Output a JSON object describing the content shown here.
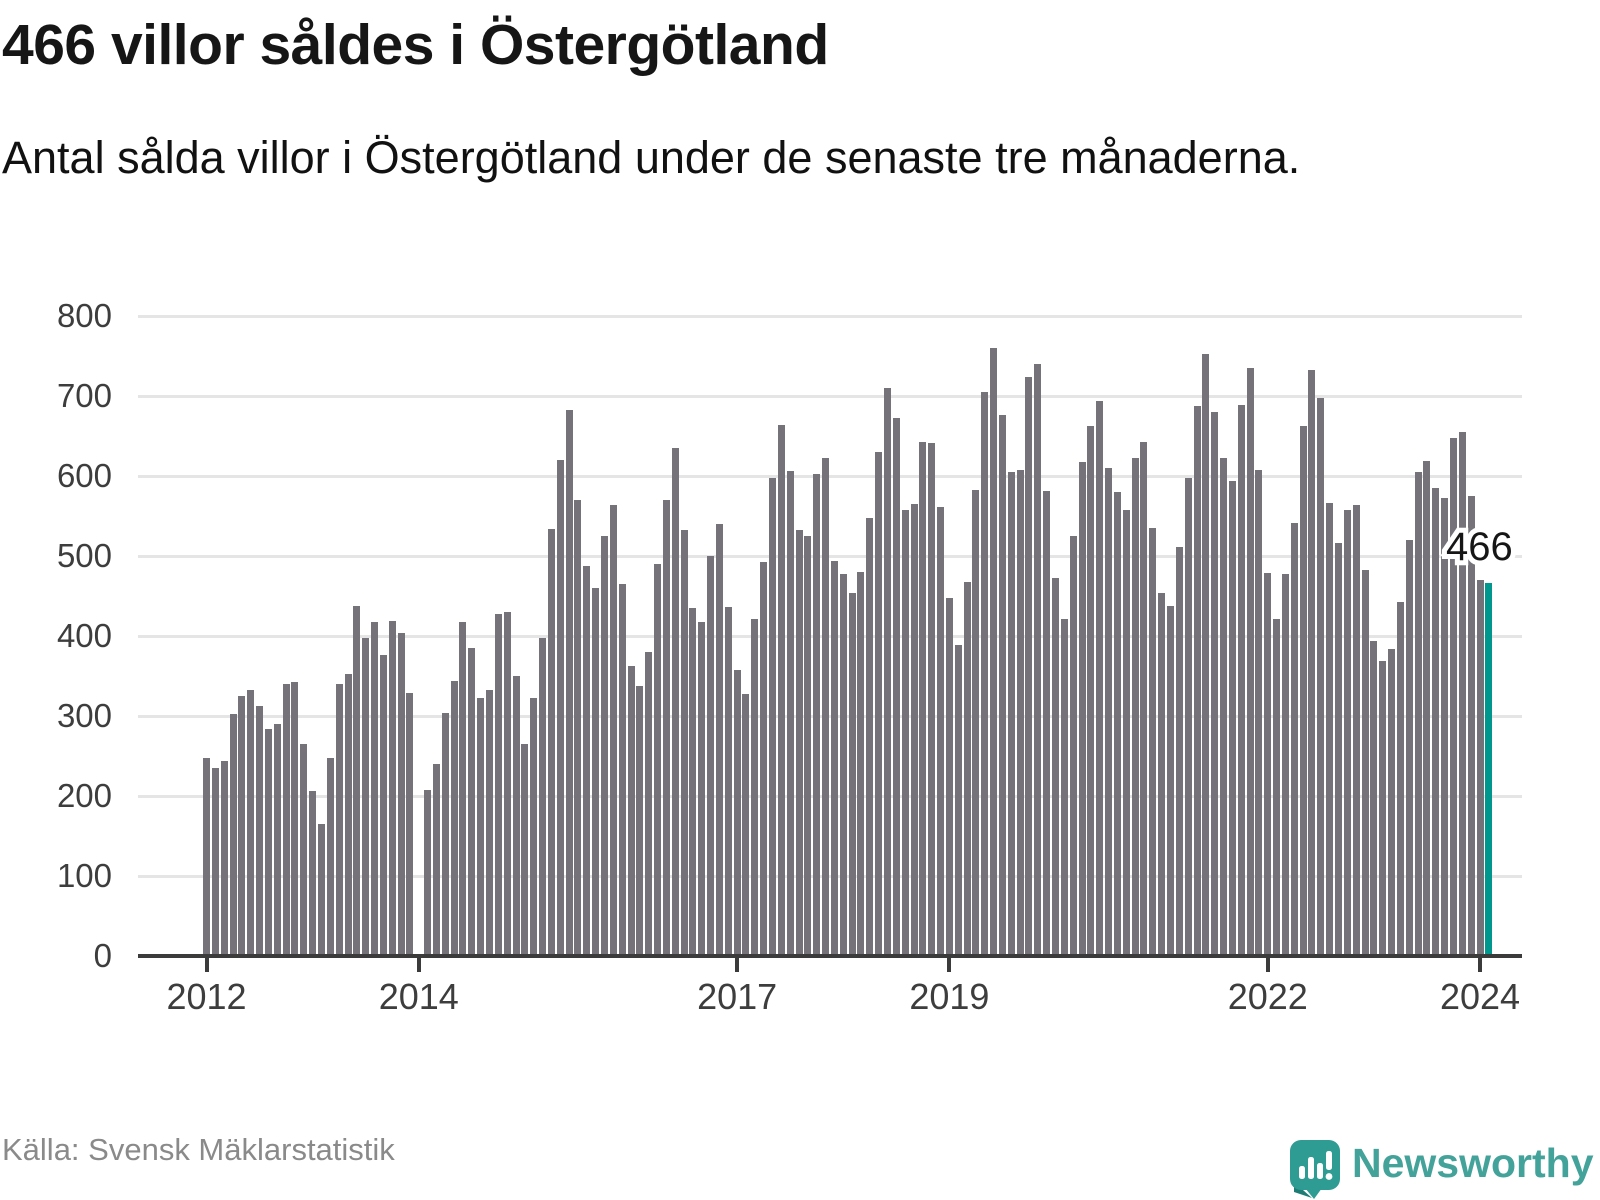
{
  "header": {
    "title": "466 villor såldes i Östergötland",
    "subtitle": "Antal sålda villor i Östergötland under de senaste tre månaderna."
  },
  "footer": {
    "source": "Källa: Svensk Mäklarstatistik",
    "logo_text": "Newsworthy"
  },
  "colors": {
    "bar": "#757379",
    "highlight": "#00988e",
    "axis": "#3b3b3b",
    "grid": "#e5e5e5",
    "tick_label": "#3d3d3d",
    "logo_teal": "#2e9c93"
  },
  "chart_data": {
    "type": "bar",
    "title": "466 villor såldes i Östergötland",
    "subtitle": "Antal sålda villor i Östergötland under de senaste tre månaderna.",
    "xlabel": "",
    "ylabel": "",
    "ylim": [
      0,
      800
    ],
    "ytick_step": 100,
    "ytick_labels": [
      "0",
      "100",
      "200",
      "300",
      "400",
      "500",
      "600",
      "700",
      "800"
    ],
    "grid": true,
    "legend": "none",
    "start_month": "2012-01",
    "end_month": "2024-02",
    "frequency": "monthly",
    "missing_month": "2014-01",
    "x_ticks": [
      {
        "label": "2012",
        "month_index": 0
      },
      {
        "label": "2014",
        "month_index": 24
      },
      {
        "label": "2017",
        "month_index": 60
      },
      {
        "label": "2019",
        "month_index": 84
      },
      {
        "label": "2022",
        "month_index": 120
      },
      {
        "label": "2024",
        "month_index": 144
      }
    ],
    "values": [
      248,
      235,
      244,
      302,
      325,
      333,
      313,
      284,
      290,
      340,
      342,
      265,
      206,
      165,
      248,
      340,
      352,
      437,
      397,
      417,
      376,
      419,
      404,
      329,
      null,
      208,
      240,
      304,
      344,
      417,
      385,
      322,
      332,
      428,
      430,
      350,
      265,
      322,
      398,
      534,
      620,
      683,
      570,
      488,
      460,
      525,
      564,
      465,
      363,
      338,
      380,
      490,
      570,
      635,
      533,
      435,
      417,
      500,
      540,
      436,
      358,
      327,
      421,
      492,
      598,
      664,
      606,
      533,
      525,
      603,
      622,
      494,
      478,
      454,
      480,
      548,
      630,
      710,
      672,
      558,
      565,
      642,
      641,
      561,
      447,
      389,
      468,
      583,
      705,
      760,
      676,
      605,
      608,
      724,
      740,
      581,
      472,
      421,
      525,
      617,
      663,
      694,
      610,
      580,
      557,
      623,
      643,
      535,
      454,
      437,
      511,
      597,
      687,
      753,
      680,
      623,
      594,
      689,
      735,
      608,
      479,
      421,
      477,
      541,
      663,
      732,
      697,
      566,
      516,
      557,
      564,
      482,
      394,
      369,
      384,
      442,
      520,
      605,
      619,
      585,
      572,
      648,
      655,
      575,
      470,
      466
    ],
    "highlight": {
      "index": 145,
      "value": 466,
      "label": "466"
    },
    "annotation": {
      "label": "466"
    }
  }
}
